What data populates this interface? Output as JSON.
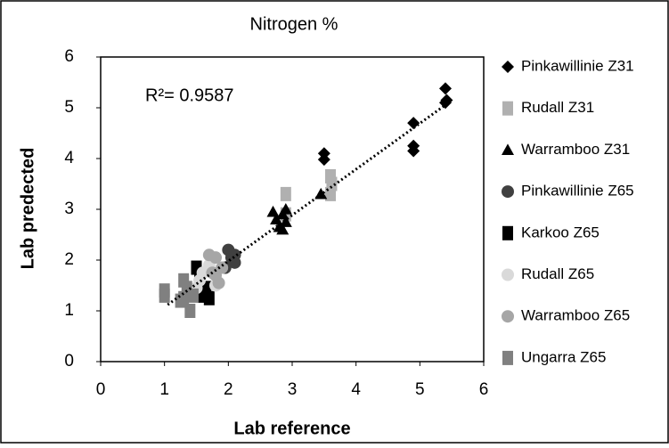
{
  "chart_data": {
    "type": "scatter",
    "title": "Nitrogen %",
    "x_label": "Lab reference",
    "y_label": "Lab predected",
    "annotation": "R²= 0.9587",
    "xlim": [
      0,
      6
    ],
    "xticks": [
      0,
      1,
      2,
      3,
      4,
      5,
      6
    ],
    "ylim": [
      0,
      6
    ],
    "yticks": [
      0,
      1,
      2,
      3,
      4,
      5,
      6
    ],
    "grid": false,
    "legend": "right",
    "trendline": {
      "x": [
        1.05,
        5.45
      ],
      "y": [
        1.12,
        5.1
      ]
    },
    "series": [
      {
        "name": "Pinkawillinie Z31",
        "color": "#000000",
        "marker": "diamond",
        "x": [
          3.5,
          3.5,
          4.9,
          4.9,
          4.9,
          5.4,
          5.4,
          5.42
        ],
        "y": [
          4.1,
          3.98,
          4.7,
          4.25,
          4.15,
          5.38,
          5.1,
          5.15
        ]
      },
      {
        "name": "Rudall Z31",
        "color": "#b0b0b0",
        "marker": "square",
        "x": [
          2.9,
          3.6,
          3.6,
          3.62,
          2.9
        ],
        "y": [
          3.3,
          3.65,
          3.3,
          3.5,
          2.9
        ]
      },
      {
        "name": "Warramboo Z31",
        "color": "#000000",
        "marker": "triangle",
        "x": [
          2.7,
          2.75,
          2.8,
          2.85,
          2.9,
          2.85,
          2.9,
          3.45
        ],
        "y": [
          2.95,
          2.8,
          2.65,
          2.9,
          3.0,
          2.6,
          2.75,
          3.3
        ]
      },
      {
        "name": "Pinkawillinie Z65",
        "color": "#404040",
        "marker": "circle",
        "x": [
          2.0,
          2.05,
          2.1,
          1.95,
          2.1
        ],
        "y": [
          2.2,
          2.05,
          1.95,
          1.85,
          2.1
        ]
      },
      {
        "name": "Karkoo Z65",
        "color": "#000000",
        "marker": "square",
        "x": [
          1.5,
          1.7,
          1.55,
          1.65,
          1.6
        ],
        "y": [
          1.85,
          1.25,
          1.6,
          1.45,
          1.3
        ]
      },
      {
        "name": "Rudall Z65",
        "color": "#d9d9d9",
        "marker": "circle",
        "x": [
          1.5,
          1.6,
          1.7,
          1.55,
          1.8
        ],
        "y": [
          1.45,
          1.75,
          1.9,
          1.6,
          1.5
        ]
      },
      {
        "name": "Warramboo Z65",
        "color": "#a6a6a6",
        "marker": "circle",
        "x": [
          1.7,
          1.8,
          1.75,
          1.85,
          1.9,
          1.8
        ],
        "y": [
          2.1,
          2.05,
          1.75,
          1.55,
          1.85,
          1.7
        ]
      },
      {
        "name": "Ungarra Z65",
        "color": "#808080",
        "marker": "square",
        "x": [
          1.0,
          1.0,
          1.25,
          1.3,
          1.4,
          1.35,
          1.45,
          1.3
        ],
        "y": [
          1.4,
          1.3,
          1.2,
          1.6,
          1.0,
          1.45,
          1.3,
          1.25
        ]
      }
    ]
  }
}
